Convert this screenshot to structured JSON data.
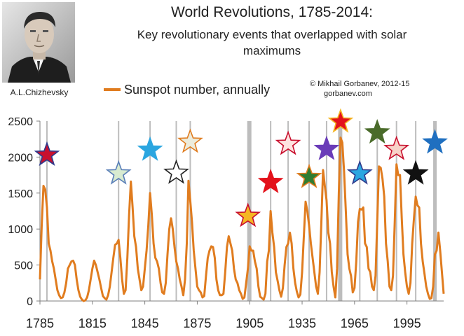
{
  "header": {
    "title": "World Revolutions, 1785-2014:",
    "subtitle_line1": "Key revolutionary events that overlapped with solar",
    "subtitle_line2": "maximums"
  },
  "portrait": {
    "caption": "A.L.Chizhevsky",
    "icon": "portrait-photo"
  },
  "legend": {
    "label": "Sunspot number, annually",
    "color": "#e07c1f"
  },
  "credit": {
    "line1": "© Mikhail Gorbanev, 2012-15",
    "line2": "gorbanev.com"
  },
  "chart_data": {
    "type": "line",
    "x_start": 1785,
    "x_end": 2014,
    "xlim": [
      1785,
      2014
    ],
    "ylim": [
      0,
      2500
    ],
    "x_ticks": [
      1785,
      1815,
      1845,
      1875,
      1905,
      1935,
      1965,
      1995
    ],
    "y_ticks": [
      0,
      500,
      1000,
      1500,
      2000,
      2500
    ],
    "grid": false,
    "legend_position": "top-left",
    "series_color": "#e07c1f",
    "points": [
      [
        1785,
        300
      ],
      [
        1786,
        1050
      ],
      [
        1787,
        1600
      ],
      [
        1788,
        1550
      ],
      [
        1789,
        1300
      ],
      [
        1790,
        800
      ],
      [
        1791,
        700
      ],
      [
        1792,
        550
      ],
      [
        1793,
        450
      ],
      [
        1794,
        300
      ],
      [
        1795,
        150
      ],
      [
        1796,
        80
      ],
      [
        1797,
        40
      ],
      [
        1798,
        50
      ],
      [
        1799,
        120
      ],
      [
        1800,
        250
      ],
      [
        1801,
        450
      ],
      [
        1802,
        500
      ],
      [
        1803,
        550
      ],
      [
        1804,
        560
      ],
      [
        1805,
        500
      ],
      [
        1806,
        300
      ],
      [
        1807,
        150
      ],
      [
        1808,
        60
      ],
      [
        1809,
        20
      ],
      [
        1810,
        0
      ],
      [
        1811,
        10
      ],
      [
        1812,
        50
      ],
      [
        1813,
        150
      ],
      [
        1814,
        300
      ],
      [
        1815,
        450
      ],
      [
        1816,
        560
      ],
      [
        1817,
        500
      ],
      [
        1818,
        400
      ],
      [
        1819,
        300
      ],
      [
        1820,
        180
      ],
      [
        1821,
        70
      ],
      [
        1822,
        40
      ],
      [
        1823,
        20
      ],
      [
        1824,
        80
      ],
      [
        1825,
        200
      ],
      [
        1826,
        400
      ],
      [
        1827,
        600
      ],
      [
        1828,
        780
      ],
      [
        1829,
        800
      ],
      [
        1830,
        850
      ],
      [
        1831,
        600
      ],
      [
        1832,
        300
      ],
      [
        1833,
        100
      ],
      [
        1834,
        150
      ],
      [
        1835,
        600
      ],
      [
        1836,
        1200
      ],
      [
        1837,
        1660
      ],
      [
        1838,
        1300
      ],
      [
        1839,
        900
      ],
      [
        1840,
        750
      ],
      [
        1841,
        450
      ],
      [
        1842,
        300
      ],
      [
        1843,
        150
      ],
      [
        1844,
        200
      ],
      [
        1845,
        450
      ],
      [
        1846,
        700
      ],
      [
        1847,
        1050
      ],
      [
        1848,
        1500
      ],
      [
        1849,
        1200
      ],
      [
        1850,
        800
      ],
      [
        1851,
        600
      ],
      [
        1852,
        550
      ],
      [
        1853,
        450
      ],
      [
        1854,
        250
      ],
      [
        1855,
        120
      ],
      [
        1856,
        100
      ],
      [
        1857,
        250
      ],
      [
        1858,
        650
      ],
      [
        1859,
        1000
      ],
      [
        1860,
        1150
      ],
      [
        1861,
        1000
      ],
      [
        1862,
        750
      ],
      [
        1863,
        550
      ],
      [
        1864,
        450
      ],
      [
        1865,
        300
      ],
      [
        1866,
        200
      ],
      [
        1867,
        80
      ],
      [
        1868,
        300
      ],
      [
        1869,
        800
      ],
      [
        1870,
        1670
      ],
      [
        1871,
        1400
      ],
      [
        1872,
        1100
      ],
      [
        1873,
        700
      ],
      [
        1874,
        450
      ],
      [
        1875,
        200
      ],
      [
        1876,
        150
      ],
      [
        1877,
        120
      ],
      [
        1878,
        50
      ],
      [
        1879,
        70
      ],
      [
        1880,
        350
      ],
      [
        1881,
        600
      ],
      [
        1882,
        700
      ],
      [
        1883,
        760
      ],
      [
        1884,
        750
      ],
      [
        1885,
        600
      ],
      [
        1886,
        300
      ],
      [
        1887,
        150
      ],
      [
        1888,
        80
      ],
      [
        1889,
        80
      ],
      [
        1890,
        100
      ],
      [
        1891,
        400
      ],
      [
        1892,
        750
      ],
      [
        1893,
        900
      ],
      [
        1894,
        800
      ],
      [
        1895,
        700
      ],
      [
        1896,
        450
      ],
      [
        1897,
        300
      ],
      [
        1898,
        250
      ],
      [
        1899,
        150
      ],
      [
        1900,
        100
      ],
      [
        1901,
        30
      ],
      [
        1902,
        50
      ],
      [
        1903,
        250
      ],
      [
        1904,
        450
      ],
      [
        1905,
        760
      ],
      [
        1906,
        700
      ],
      [
        1907,
        700
      ],
      [
        1908,
        550
      ],
      [
        1909,
        450
      ],
      [
        1910,
        200
      ],
      [
        1911,
        60
      ],
      [
        1912,
        40
      ],
      [
        1913,
        20
      ],
      [
        1914,
        100
      ],
      [
        1915,
        550
      ],
      [
        1916,
        700
      ],
      [
        1917,
        1250
      ],
      [
        1918,
        950
      ],
      [
        1919,
        750
      ],
      [
        1920,
        400
      ],
      [
        1921,
        280
      ],
      [
        1922,
        150
      ],
      [
        1923,
        60
      ],
      [
        1924,
        180
      ],
      [
        1925,
        500
      ],
      [
        1926,
        750
      ],
      [
        1927,
        800
      ],
      [
        1928,
        950
      ],
      [
        1929,
        800
      ],
      [
        1930,
        450
      ],
      [
        1931,
        250
      ],
      [
        1932,
        130
      ],
      [
        1933,
        50
      ],
      [
        1934,
        90
      ],
      [
        1935,
        400
      ],
      [
        1936,
        900
      ],
      [
        1937,
        1380
      ],
      [
        1938,
        1250
      ],
      [
        1939,
        1050
      ],
      [
        1940,
        800
      ],
      [
        1941,
        600
      ],
      [
        1942,
        400
      ],
      [
        1943,
        200
      ],
      [
        1944,
        100
      ],
      [
        1945,
        400
      ],
      [
        1946,
        1100
      ],
      [
        1947,
        1820
      ],
      [
        1948,
        1600
      ],
      [
        1949,
        1400
      ],
      [
        1950,
        950
      ],
      [
        1951,
        800
      ],
      [
        1952,
        400
      ],
      [
        1953,
        200
      ],
      [
        1954,
        50
      ],
      [
        1955,
        450
      ],
      [
        1956,
        1500
      ],
      [
        1957,
        2270
      ],
      [
        1958,
        2200
      ],
      [
        1959,
        1800
      ],
      [
        1960,
        1250
      ],
      [
        1961,
        650
      ],
      [
        1962,
        450
      ],
      [
        1963,
        350
      ],
      [
        1964,
        120
      ],
      [
        1965,
        180
      ],
      [
        1966,
        550
      ],
      [
        1967,
        1100
      ],
      [
        1968,
        1280
      ],
      [
        1969,
        1270
      ],
      [
        1970,
        1300
      ],
      [
        1971,
        800
      ],
      [
        1972,
        750
      ],
      [
        1973,
        450
      ],
      [
        1974,
        400
      ],
      [
        1975,
        200
      ],
      [
        1976,
        150
      ],
      [
        1977,
        350
      ],
      [
        1978,
        1100
      ],
      [
        1979,
        1870
      ],
      [
        1980,
        1850
      ],
      [
        1981,
        1700
      ],
      [
        1982,
        1450
      ],
      [
        1983,
        800
      ],
      [
        1984,
        550
      ],
      [
        1985,
        200
      ],
      [
        1986,
        150
      ],
      [
        1987,
        350
      ],
      [
        1988,
        1100
      ],
      [
        1989,
        1900
      ],
      [
        1990,
        1750
      ],
      [
        1991,
        1750
      ],
      [
        1992,
        1150
      ],
      [
        1993,
        650
      ],
      [
        1994,
        400
      ],
      [
        1995,
        200
      ],
      [
        1996,
        100
      ],
      [
        1997,
        250
      ],
      [
        1998,
        800
      ],
      [
        1999,
        1150
      ],
      [
        2000,
        1450
      ],
      [
        2001,
        1330
      ],
      [
        2002,
        1300
      ],
      [
        2003,
        800
      ],
      [
        2004,
        550
      ],
      [
        2005,
        380
      ],
      [
        2006,
        200
      ],
      [
        2007,
        100
      ],
      [
        2008,
        30
      ],
      [
        2009,
        40
      ],
      [
        2010,
        200
      ],
      [
        2011,
        650
      ],
      [
        2012,
        700
      ],
      [
        2013,
        950
      ],
      [
        2014,
        700
      ],
      [
        2015,
        400
      ],
      [
        2016,
        100
      ]
    ],
    "revolution_lines": [
      1789,
      1830,
      1848,
      1863,
      1871,
      1904,
      1917,
      1927,
      1939,
      1949,
      1956,
      1968,
      1978,
      1989,
      2000,
      2011
    ],
    "shaded_bands": [
      [
        1904,
        1906
      ],
      [
        1956,
        1958
      ],
      [
        2010,
        2012
      ]
    ],
    "stars": [
      {
        "year": 1789,
        "value": 2030,
        "fill": "#c8102e",
        "stroke": "#2e3a8c",
        "icon": "star-icon"
      },
      {
        "year": 1830,
        "value": 1770,
        "fill": "#d8ebd0",
        "stroke": "#5a7fb8",
        "icon": "star-icon"
      },
      {
        "year": 1848,
        "value": 2100,
        "fill": "#2ba6e0",
        "stroke": "#2ba6e0",
        "icon": "star-icon"
      },
      {
        "year": 1863,
        "value": 1780,
        "fill": "#ffffff",
        "stroke": "#222222",
        "icon": "star-icon"
      },
      {
        "year": 1871,
        "value": 2210,
        "fill": "#ececdc",
        "stroke": "#e07c1f",
        "icon": "star-icon"
      },
      {
        "year": 1904,
        "value": 1180,
        "fill": "#f5b622",
        "stroke": "#c8102e",
        "icon": "star-icon"
      },
      {
        "year": 1917,
        "value": 1650,
        "fill": "#e3121b",
        "stroke": "#e3121b",
        "icon": "star-icon"
      },
      {
        "year": 1927,
        "value": 2180,
        "fill": "#ffe4e1",
        "stroke": "#c8102e",
        "icon": "star-icon"
      },
      {
        "year": 1939,
        "value": 1720,
        "fill": "#2f7d32",
        "stroke": "#e07c1f",
        "icon": "star-icon"
      },
      {
        "year": 1949,
        "value": 2110,
        "fill": "#6a3cb8",
        "stroke": "#6a3cb8",
        "icon": "star-icon"
      },
      {
        "year": 1957,
        "value": 2490,
        "fill": "#e3121b",
        "stroke": "#f5b622",
        "icon": "star-icon"
      },
      {
        "year": 1968,
        "value": 1770,
        "fill": "#2ba6e0",
        "stroke": "#2e3a8c",
        "icon": "star-icon"
      },
      {
        "year": 1978,
        "value": 2340,
        "fill": "#4a6b2a",
        "stroke": "#4a6b2a",
        "icon": "star-icon"
      },
      {
        "year": 1989,
        "value": 2110,
        "fill": "#f7d2c8",
        "stroke": "#c8102e",
        "icon": "star-icon"
      },
      {
        "year": 2000,
        "value": 1770,
        "fill": "#111111",
        "stroke": "#111111",
        "icon": "star-icon"
      },
      {
        "year": 2011,
        "value": 2200,
        "fill": "#1f6fc0",
        "stroke": "#1f6fc0",
        "icon": "star-icon"
      }
    ]
  }
}
